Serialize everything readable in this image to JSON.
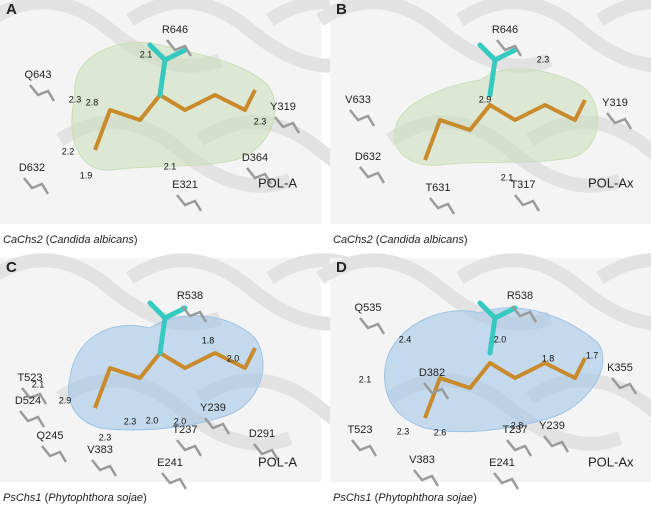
{
  "panels": [
    {
      "letter": "A",
      "mode": "POL-A",
      "surface_color": "#c9dfb8",
      "residues": [
        "R646",
        "Q643",
        "Y319",
        "D364",
        "D632",
        "E321"
      ],
      "distances": [
        "2.1",
        "2.8",
        "2.3",
        "2.3",
        "2.2",
        "1.9",
        "2.1"
      ],
      "caption": [
        {
          "text": "CaChs2",
          "italic": true
        },
        {
          "text": " (",
          "italic": false
        },
        {
          "text": "Candida albicans",
          "italic": true
        },
        {
          "text": ")",
          "italic": false
        }
      ]
    },
    {
      "letter": "B",
      "mode": "POL-Ax",
      "surface_color": "#c9dfb8",
      "residues": [
        "R646",
        "V633",
        "Y319",
        "D632",
        "T631",
        "T317"
      ],
      "distances": [
        "2.3",
        "2.9",
        "2.1"
      ],
      "caption": [
        {
          "text": "CaChs2",
          "italic": true
        },
        {
          "text": " (",
          "italic": false
        },
        {
          "text": "Candida albicans",
          "italic": true
        },
        {
          "text": ")",
          "italic": false
        }
      ]
    },
    {
      "letter": "C",
      "mode": "POL-A",
      "surface_color": "#9ec3e6",
      "residues": [
        "R538",
        "T523",
        "D524",
        "Q245",
        "V383",
        "T237",
        "Y239",
        "D291",
        "E241"
      ],
      "distances": [
        "1.8",
        "2.0",
        "2.1",
        "2.9",
        "2.3",
        "2.0",
        "2.0",
        "2.3"
      ],
      "caption": [
        {
          "text": "PsChs1",
          "italic": true
        },
        {
          "text": " (",
          "italic": false
        },
        {
          "text": "Phytophthora sojae",
          "italic": true
        },
        {
          "text": ")",
          "italic": false
        }
      ]
    },
    {
      "letter": "D",
      "mode": "POL-Ax",
      "surface_color": "#9ec3e6",
      "residues": [
        "Q535",
        "R538",
        "D382",
        "K355",
        "T523",
        "V383",
        "T237",
        "Y239",
        "E241"
      ],
      "distances": [
        "2.4",
        "2.0",
        "1.8",
        "1.7",
        "2.1",
        "2.3",
        "2.6",
        "2.8"
      ],
      "caption": [
        {
          "text": "PsChs1",
          "italic": true
        },
        {
          "text": " (",
          "italic": false
        },
        {
          "text": "Phytophthora sojae",
          "italic": true
        },
        {
          "text": ")",
          "italic": false
        }
      ]
    }
  ]
}
